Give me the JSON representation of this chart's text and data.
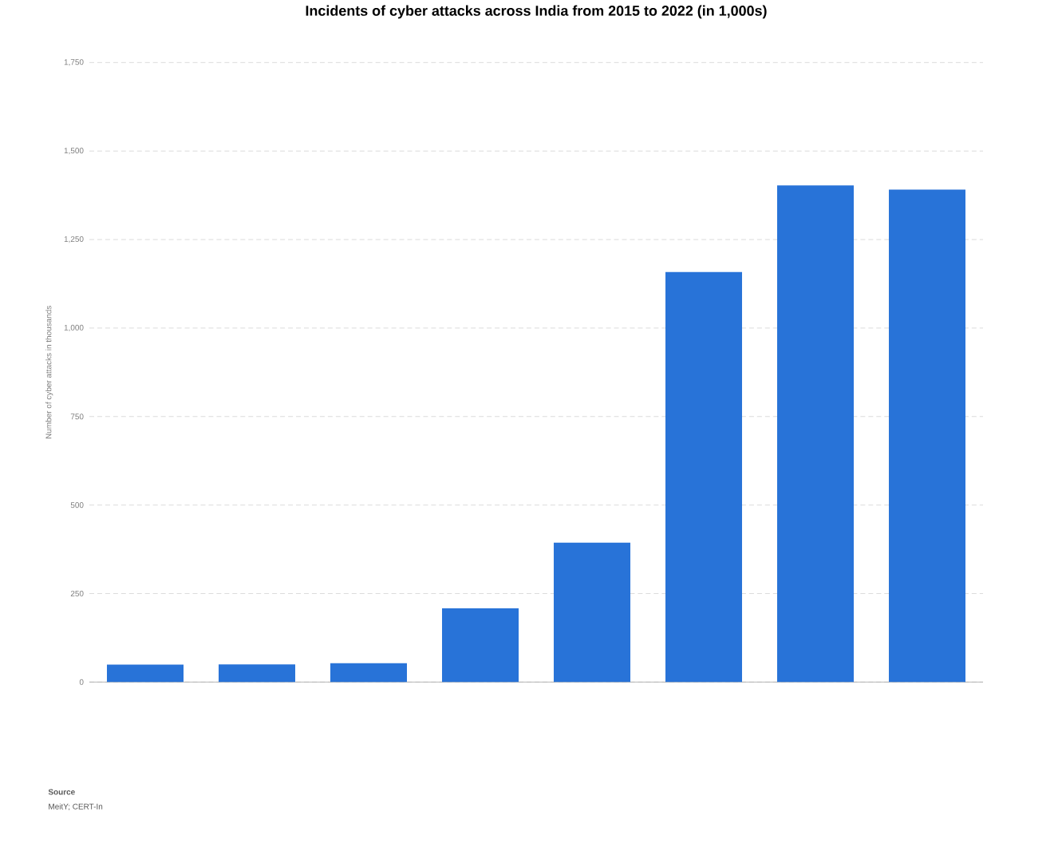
{
  "chart_data": {
    "type": "bar",
    "title": "Incidents of cyber attacks across India from 2015 to 2022 (in 1,000s)",
    "ylabel": "Number of cyber attacks in thousands",
    "categories": [
      null,
      null,
      null,
      null,
      null,
      null,
      null,
      null
    ],
    "values": [
      49,
      50,
      53,
      208,
      394,
      1158,
      1403,
      1391
    ],
    "color": "#2873d8",
    "ylim": [
      0,
      1750
    ],
    "yticks": [
      0,
      250,
      500,
      750,
      {
        "value": 1000,
        "label": "1,000"
      },
      {
        "value": 1250,
        "label": "1,250"
      },
      {
        "value": 1500,
        "label": "1,500"
      },
      {
        "value": 1750,
        "label": "1,750"
      }
    ],
    "grid": "y",
    "annotations": [
      "Source",
      "MeitY; CERT-In"
    ]
  }
}
